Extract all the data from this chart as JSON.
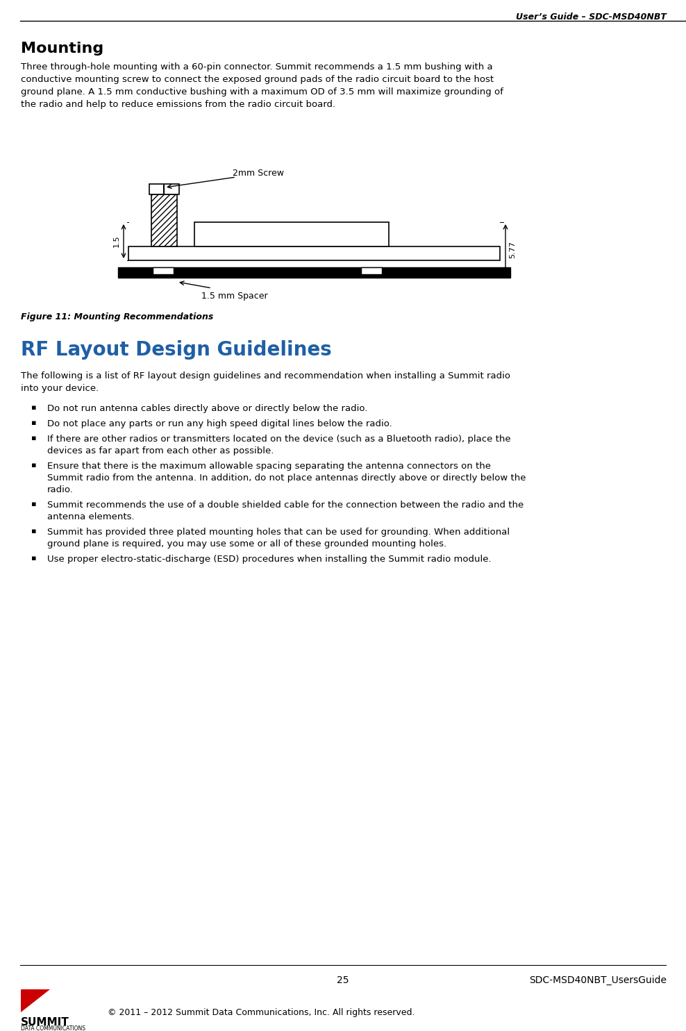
{
  "header_text": "User’s Guide – SDC-MSD40NBT",
  "page_title": "Mounting",
  "mounting_body": "Three through-hole mounting with a 60-pin connector. Summit recommends a 1.5 mm bushing with a\nconductive mounting screw to connect the exposed ground pads of the radio circuit board to the host\nground plane. A 1.5 mm conductive bushing with a maximum OD of 3.5 mm will maximize grounding of\nthe radio and help to reduce emissions from the radio circuit board.",
  "figure_caption": "Figure 11: Mounting Recommendations",
  "section_title": "RF Layout Design Guidelines",
  "section_intro": "The following is a list of RF layout design guidelines and recommendation when installing a Summit radio\ninto your device.",
  "bullet_points": [
    "Do not run antenna cables directly above or directly below the radio.",
    "Do not place any parts or run any high speed digital lines below the radio.",
    "If there are other radios or transmitters located on the device (such as a Bluetooth radio), place the\ndevices as far apart from each other as possible.",
    "Ensure that there is the maximum allowable spacing separating the antenna connectors on the\nSummit radio from the antenna. In addition, do not place antennas directly above or directly below the\nradio.",
    "Summit recommends the use of a double shielded cable for the connection between the radio and the\nantenna elements.",
    "Summit has provided three plated mounting holes that can be used for grounding. When additional\nground plane is required, you may use some or all of these grounded mounting holes.",
    "Use proper electro-static-discharge (ESD) procedures when installing the Summit radio module."
  ],
  "footer_page": "25",
  "footer_right": "SDC-MSD40NBT_UsersGuide",
  "footer_copy": "© 2011 – 2012 Summit Data Communications, Inc. All rights reserved.",
  "bg_color": "#ffffff",
  "text_color": "#000000",
  "header_color": "#000000",
  "section_title_color": "#1f5fa6",
  "figure_caption_color": "#000000"
}
